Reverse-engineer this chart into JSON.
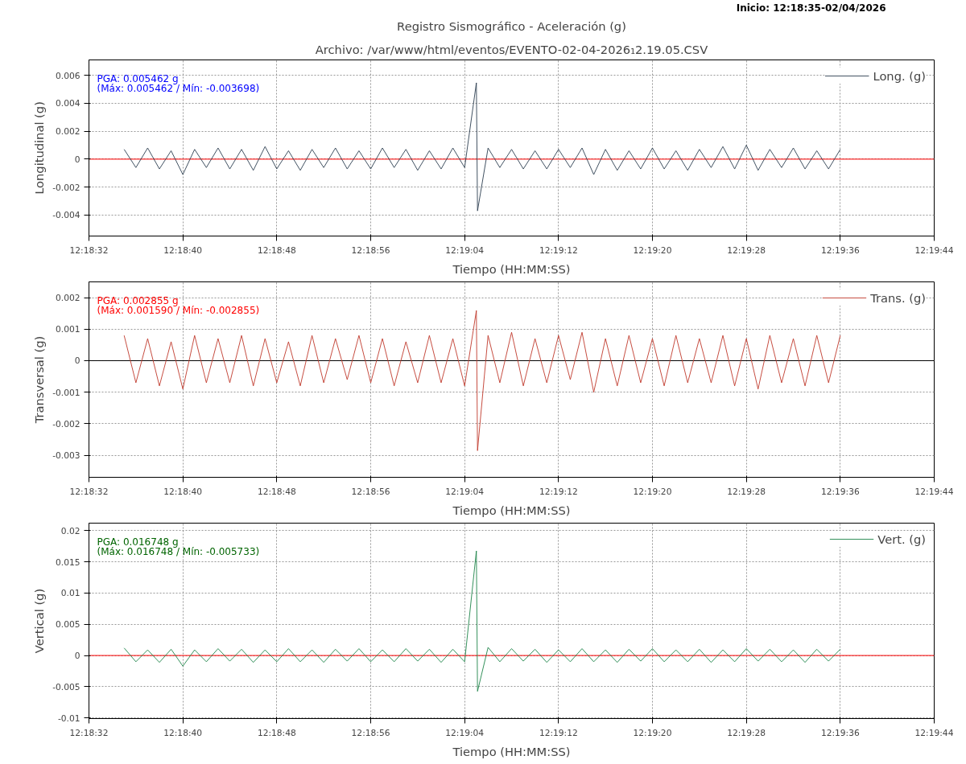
{
  "chart_data": [
    {
      "type": "line",
      "title": "Registro Sismográfico - Aceleración (g)",
      "subtitle": "Archivo: /var/www/html/eventos/EVENTO-02-04-2026₁2.19.05.CSV",
      "xlabel": "Tiempo (HH:MM:SS)",
      "ylabel": "Longitudinal (g)",
      "annotations": [
        "PGA: 0.005462 g",
        "(Máx: 0.005462 / Mín: -0.003698)",
        "Inicio: 12:18:35-02/04/2026"
      ],
      "x": [
        12.309722,
        12.31,
        12.310278,
        12.310556,
        12.310833,
        12.311111,
        12.311389,
        12.311667,
        12.311944,
        12.312222,
        12.3125,
        12.312778,
        12.313056,
        12.313333,
        12.313611,
        12.313889,
        12.314167,
        12.314444,
        12.314722,
        12.315,
        12.315278,
        12.315556,
        12.315833,
        12.316111,
        12.316389,
        12.316667,
        12.316944,
        12.317222,
        12.3175,
        12.317778,
        12.318056,
        12.318083,
        12.318333,
        12.318611,
        12.318889,
        12.319167,
        12.319444,
        12.319722,
        12.32,
        12.320278,
        12.320556,
        12.320833,
        12.321111,
        12.321389,
        12.321667,
        12.321944,
        12.322222,
        12.3225,
        12.322778,
        12.323056,
        12.323333,
        12.323611,
        12.323889,
        12.324167,
        12.324444,
        12.324722,
        12.325,
        12.325278,
        12.325556,
        12.325833,
        12.326111,
        12.326389,
        12.326667
      ],
      "series": [
        {
          "name": "Long. (g)",
          "color": "#2c3e50",
          "values": [
            0.0007,
            -0.0006,
            0.0008,
            -0.0007,
            0.0006,
            -0.0011,
            0.0007,
            -0.0006,
            0.0008,
            -0.0007,
            0.0007,
            -0.0008,
            0.0009,
            -0.0007,
            0.0006,
            -0.0008,
            0.0007,
            -0.0006,
            0.0008,
            -0.0007,
            0.0006,
            -0.0007,
            0.0008,
            -0.0006,
            0.0007,
            -0.0008,
            0.0006,
            -0.0007,
            0.0008,
            -0.0006,
            0.005462,
            -0.003698,
            0.0008,
            -0.0006,
            0.0007,
            -0.0007,
            0.0006,
            -0.0007,
            0.0007,
            -0.0006,
            0.0008,
            -0.0011,
            0.0007,
            -0.0008,
            0.0006,
            -0.0007,
            0.0008,
            -0.0007,
            0.0006,
            -0.0008,
            0.0007,
            -0.0006,
            0.0009,
            -0.0007,
            0.001,
            -0.0008,
            0.0007,
            -0.0006,
            0.0008,
            -0.0007,
            0.0006,
            -0.0007,
            0.0007
          ]
        }
      ],
      "xlim": [
        12.308889,
        12.328889
      ],
      "xticks": [
        {
          "value": 12.308889,
          "label": "12:18:32"
        },
        {
          "value": 12.311111,
          "label": "12:18:40"
        },
        {
          "value": 12.313333,
          "label": "12:18:48"
        },
        {
          "value": 12.315556,
          "label": "12:18:56"
        },
        {
          "value": 12.317778,
          "label": "12:19:04"
        },
        {
          "value": 12.32,
          "label": "12:19:12"
        },
        {
          "value": 12.322222,
          "label": "12:19:20"
        },
        {
          "value": 12.324444,
          "label": "12:19:28"
        },
        {
          "value": 12.326667,
          "label": "12:19:36"
        },
        {
          "value": 12.328889,
          "label": "12:19:44"
        }
      ],
      "ylim": [
        -0.0055,
        0.0071
      ],
      "yticks": [
        -0.004,
        -0.002,
        0,
        0.002,
        0.004,
        0.006
      ],
      "ref_lines": [
        {
          "axis": "y",
          "value": 0,
          "color": "#ff0000"
        }
      ],
      "grid": true,
      "legend": "top right",
      "line_style": "solid",
      "marker": "none"
    },
    {
      "type": "line",
      "xlabel": "Tiempo (HH:MM:SS)",
      "ylabel": "Transversal (g)",
      "annotations": [
        "PGA: 0.002855 g",
        "(Máx: 0.001590 / Mín: -0.002855)"
      ],
      "x": [
        12.309722,
        12.31,
        12.310278,
        12.310556,
        12.310833,
        12.311111,
        12.311389,
        12.311667,
        12.311944,
        12.312222,
        12.3125,
        12.312778,
        12.313056,
        12.313333,
        12.313611,
        12.313889,
        12.314167,
        12.314444,
        12.314722,
        12.315,
        12.315278,
        12.315556,
        12.315833,
        12.316111,
        12.316389,
        12.316667,
        12.316944,
        12.317222,
        12.3175,
        12.317778,
        12.318056,
        12.318083,
        12.318333,
        12.318611,
        12.318889,
        12.319167,
        12.319444,
        12.319722,
        12.32,
        12.320278,
        12.320556,
        12.320833,
        12.321111,
        12.321389,
        12.321667,
        12.321944,
        12.322222,
        12.3225,
        12.322778,
        12.323056,
        12.323333,
        12.323611,
        12.323889,
        12.324167,
        12.324444,
        12.324722,
        12.325,
        12.325278,
        12.325556,
        12.325833,
        12.326111,
        12.326389,
        12.326667
      ],
      "series": [
        {
          "name": "Trans. (g)",
          "color": "#c0392b",
          "values": [
            0.0008,
            -0.0007,
            0.0007,
            -0.0008,
            0.0006,
            -0.0009,
            0.0008,
            -0.0007,
            0.0007,
            -0.0007,
            0.0008,
            -0.0008,
            0.0007,
            -0.0007,
            0.0006,
            -0.0008,
            0.0008,
            -0.0007,
            0.0007,
            -0.0006,
            0.0008,
            -0.0007,
            0.0007,
            -0.0008,
            0.0006,
            -0.0007,
            0.0008,
            -0.0007,
            0.0007,
            -0.0008,
            0.00159,
            -0.002855,
            0.0008,
            -0.0007,
            0.0009,
            -0.0008,
            0.0007,
            -0.0007,
            0.0008,
            -0.0006,
            0.0009,
            -0.001,
            0.0007,
            -0.0008,
            0.0008,
            -0.0007,
            0.0007,
            -0.0008,
            0.0008,
            -0.0007,
            0.0007,
            -0.0007,
            0.0008,
            -0.0008,
            0.0007,
            -0.0009,
            0.0008,
            -0.0007,
            0.0007,
            -0.0008,
            0.0008,
            -0.0007,
            0.0008
          ]
        }
      ],
      "xlim": [
        12.308889,
        12.328889
      ],
      "xticks": [
        {
          "value": 12.308889,
          "label": "12:18:32"
        },
        {
          "value": 12.311111,
          "label": "12:18:40"
        },
        {
          "value": 12.313333,
          "label": "12:18:48"
        },
        {
          "value": 12.315556,
          "label": "12:18:56"
        },
        {
          "value": 12.317778,
          "label": "12:19:04"
        },
        {
          "value": 12.32,
          "label": "12:19:12"
        },
        {
          "value": 12.322222,
          "label": "12:19:20"
        },
        {
          "value": 12.324444,
          "label": "12:19:28"
        },
        {
          "value": 12.326667,
          "label": "12:19:36"
        },
        {
          "value": 12.328889,
          "label": "12:19:44"
        }
      ],
      "ylim": [
        -0.0037,
        0.0025
      ],
      "yticks": [
        -0.003,
        -0.002,
        -0.001,
        0,
        0.001,
        0.002
      ],
      "ref_lines": [
        {
          "axis": "y",
          "value": 0,
          "color": "#000000"
        }
      ],
      "grid": true,
      "legend": "top right",
      "line_style": "solid",
      "marker": "none"
    },
    {
      "type": "line",
      "xlabel": "Tiempo (HH:MM:SS)",
      "ylabel": "Vertical (g)",
      "annotations": [
        "PGA: 0.016748 g",
        "(Máx: 0.016748 / Mín: -0.005733)"
      ],
      "x": [
        12.309722,
        12.31,
        12.310278,
        12.310556,
        12.310833,
        12.311111,
        12.311389,
        12.311667,
        12.311944,
        12.312222,
        12.3125,
        12.312778,
        12.313056,
        12.313333,
        12.313611,
        12.313889,
        12.314167,
        12.314444,
        12.314722,
        12.315,
        12.315278,
        12.315556,
        12.315833,
        12.316111,
        12.316389,
        12.316667,
        12.316944,
        12.317222,
        12.3175,
        12.317778,
        12.318056,
        12.318083,
        12.318333,
        12.318611,
        12.318889,
        12.319167,
        12.319444,
        12.319722,
        12.32,
        12.320278,
        12.320556,
        12.320833,
        12.321111,
        12.321389,
        12.321667,
        12.321944,
        12.322222,
        12.3225,
        12.322778,
        12.323056,
        12.323333,
        12.323611,
        12.323889,
        12.324167,
        12.324444,
        12.324722,
        12.325,
        12.325278,
        12.325556,
        12.325833,
        12.326111,
        12.326389,
        12.326667
      ],
      "series": [
        {
          "name": "Vert. (g)",
          "color": "#1e8449",
          "values": [
            0.0012,
            -0.001,
            0.0009,
            -0.0011,
            0.001,
            -0.0017,
            0.0009,
            -0.001,
            0.0011,
            -0.0009,
            0.001,
            -0.0011,
            0.0009,
            -0.001,
            0.0011,
            -0.001,
            0.0009,
            -0.0011,
            0.001,
            -0.0009,
            0.0011,
            -0.001,
            0.0009,
            -0.001,
            0.0011,
            -0.0009,
            0.001,
            -0.0011,
            0.001,
            -0.001,
            0.016748,
            -0.005733,
            0.0013,
            -0.001,
            0.0011,
            -0.0009,
            0.001,
            -0.0011,
            0.0009,
            -0.001,
            0.0011,
            -0.001,
            0.0009,
            -0.0011,
            0.001,
            -0.0009,
            0.0011,
            -0.001,
            0.0009,
            -0.001,
            0.001,
            -0.0011,
            0.0009,
            -0.001,
            0.0011,
            -0.0009,
            0.001,
            -0.001,
            0.0009,
            -0.0011,
            0.001,
            -0.0009,
            0.001
          ]
        }
      ],
      "xlim": [
        12.308889,
        12.328889
      ],
      "xticks": [
        {
          "value": 12.308889,
          "label": "12:18:32"
        },
        {
          "value": 12.311111,
          "label": "12:18:40"
        },
        {
          "value": 12.313333,
          "label": "12:18:48"
        },
        {
          "value": 12.315556,
          "label": "12:18:56"
        },
        {
          "value": 12.317778,
          "label": "12:19:04"
        },
        {
          "value": 12.32,
          "label": "12:19:12"
        },
        {
          "value": 12.322222,
          "label": "12:19:20"
        },
        {
          "value": 12.324444,
          "label": "12:19:28"
        },
        {
          "value": 12.326667,
          "label": "12:19:36"
        },
        {
          "value": 12.328889,
          "label": "12:19:44"
        }
      ],
      "ylim": [
        -0.0101,
        0.0212
      ],
      "yticks": [
        -0.01,
        -0.005,
        0,
        0.005,
        0.01,
        0.015,
        0.02
      ],
      "ref_lines": [
        {
          "axis": "y",
          "value": 0,
          "color": "#ff0000"
        }
      ],
      "grid": true,
      "legend": "top right",
      "line_style": "solid",
      "marker": "none"
    }
  ]
}
